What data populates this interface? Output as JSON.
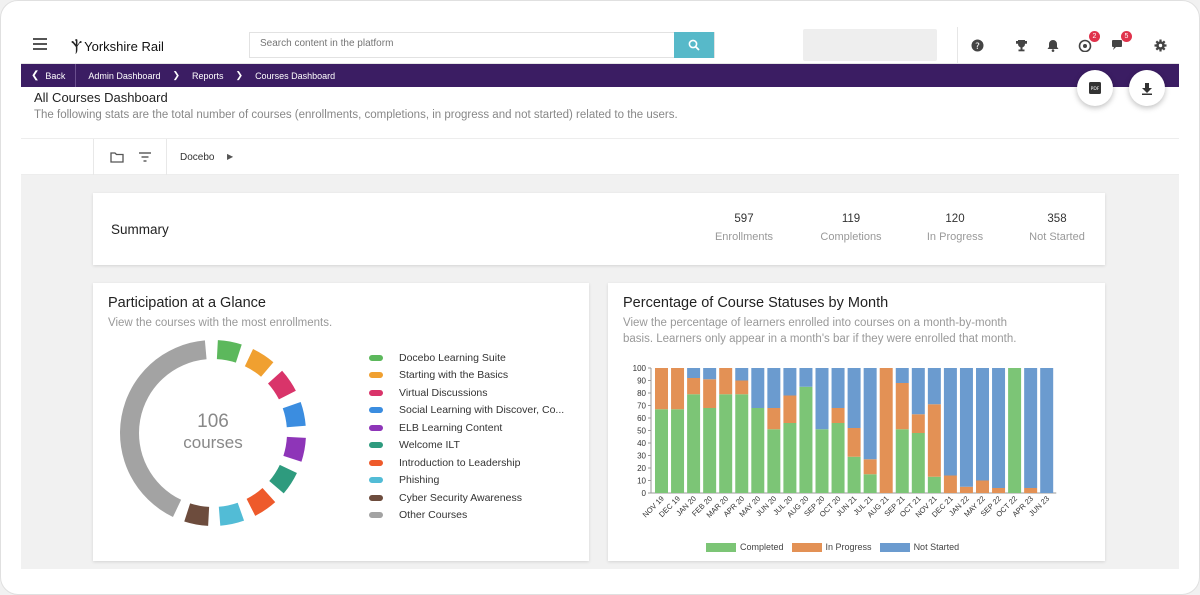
{
  "header": {
    "logo_text": "Yorkshire Rail",
    "search_placeholder": "Search content in the platform",
    "icons": [
      "help-icon",
      "trophy-icon",
      "bell-icon",
      "course-icon",
      "chat-icon",
      "gear-icon"
    ],
    "badges": {
      "courses": "2",
      "messages": "5"
    }
  },
  "breadcrumb": {
    "back": "Back",
    "items": [
      "Admin Dashboard",
      "Reports",
      "Courses Dashboard"
    ]
  },
  "page": {
    "title": "All Courses Dashboard",
    "description": "The following stats are the total number of courses (enrollments, completions, in progress and not started) related to the users."
  },
  "filters": {
    "branch": "Docebo"
  },
  "summary": {
    "title": "Summary",
    "stats": [
      {
        "value": "597",
        "label": "Enrollments"
      },
      {
        "value": "119",
        "label": "Completions"
      },
      {
        "value": "120",
        "label": "In Progress"
      },
      {
        "value": "358",
        "label": "Not Started"
      }
    ]
  },
  "participation": {
    "title": "Participation at a Glance",
    "subtitle": "View the courses with the most enrollments.",
    "center_value": "106",
    "center_unit": "courses",
    "items": [
      {
        "label": "Docebo Learning Suite",
        "color": "#5cb85c"
      },
      {
        "label": "Starting with the Basics",
        "color": "#f0a030"
      },
      {
        "label": "Virtual Discussions",
        "color": "#d9346a"
      },
      {
        "label": "Social Learning with Discover, Co...",
        "color": "#3b8de0"
      },
      {
        "label": "ELB Learning Content",
        "color": "#8e35b8"
      },
      {
        "label": "Welcome ILT",
        "color": "#2e9b7e"
      },
      {
        "label": "Introduction to Leadership",
        "color": "#ee5a2b"
      },
      {
        "label": "Phishing",
        "color": "#52bcd6"
      },
      {
        "label": "Cyber Security Awareness",
        "color": "#6d4c3d"
      },
      {
        "label": "Other Courses",
        "color": "#a3a3a3"
      }
    ]
  },
  "status_chart": {
    "title": "Percentage of Course Statuses by Month",
    "subtitle_line1": "View the percentage of learners enrolled into courses on a month-by-month",
    "subtitle_line2": "basis. Learners only appear in a month's bar if they were enrolled that month."
  },
  "chart_data": {
    "type": "bar",
    "stacked": true,
    "categories": [
      "NOV 19",
      "DEC 19",
      "JAN 20",
      "FEB 20",
      "MAR 20",
      "APR 20",
      "MAY 20",
      "JUN 20",
      "JUL 20",
      "AUG 20",
      "SEP 20",
      "OCT 20",
      "JUN 21",
      "JUL 21",
      "AUG 21",
      "SEP 21",
      "OCT 21",
      "NOV 21",
      "DEC 21",
      "JAN 22",
      "MAY 22",
      "SEP 22",
      "OCT 22",
      "APR 23",
      "JUN 23"
    ],
    "series": [
      {
        "name": "Completed",
        "color": "#7cc576",
        "values": [
          67,
          67,
          79,
          68,
          79,
          79,
          68,
          51,
          56,
          85,
          51,
          56,
          29,
          15,
          0,
          51,
          48,
          13,
          0,
          0,
          0,
          0,
          100,
          0,
          0
        ]
      },
      {
        "name": "In Progress",
        "color": "#e39155",
        "values": [
          33,
          33,
          13,
          23,
          21,
          11,
          0,
          17,
          22,
          0,
          0,
          12,
          23,
          12,
          100,
          37,
          15,
          58,
          14,
          5,
          10,
          4,
          0,
          4,
          0
        ]
      },
      {
        "name": "Not Started",
        "color": "#6b9bcf",
        "values": [
          0,
          0,
          8,
          9,
          0,
          10,
          32,
          32,
          22,
          15,
          49,
          32,
          48,
          73,
          0,
          12,
          37,
          29,
          86,
          95,
          90,
          96,
          0,
          96,
          100
        ]
      }
    ],
    "ylim": [
      0,
      100
    ],
    "yticks": [
      0,
      10,
      20,
      30,
      40,
      50,
      60,
      70,
      80,
      90,
      100
    ],
    "legend": "bottom",
    "grid": false
  }
}
